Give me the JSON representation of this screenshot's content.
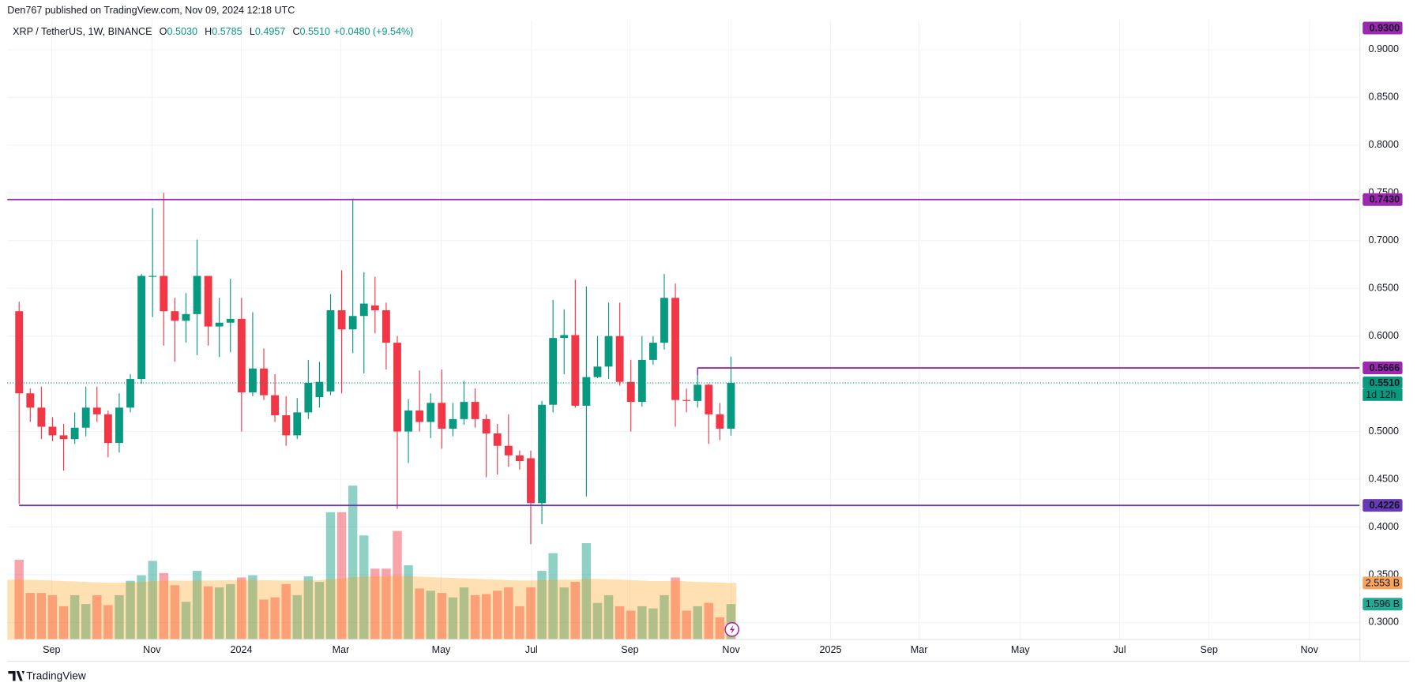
{
  "chart_data": {
    "type": "candlestick",
    "published": "Den767 published on TradingView.com, Nov 09, 2024 12:18 UTC",
    "brand": "TradingView",
    "legend": {
      "title": "XRP / TetherUS, 1W, BINANCE",
      "items": [
        {
          "key": "O",
          "value": "0.5030"
        },
        {
          "key": "H",
          "value": "0.5785"
        },
        {
          "key": "L",
          "value": "0.4957"
        },
        {
          "key": "C",
          "value": "0.5510"
        }
      ],
      "change": "+0.0480 (+9.54%)"
    },
    "up_color": "#089981",
    "down_color": "#f23645",
    "open": [
      0.626,
      0.54,
      0.525,
      0.505,
      0.496,
      0.492,
      0.504,
      0.525,
      0.518,
      0.488,
      0.525,
      0.555,
      0.662,
      0.663,
      0.626,
      0.616,
      0.623,
      0.663,
      0.61,
      0.614,
      0.618,
      0.541,
      0.566,
      0.538,
      0.517,
      0.496,
      0.52,
      0.536,
      0.542,
      0.627,
      0.607,
      0.621,
      0.632,
      0.627,
      0.593,
      0.5,
      0.522,
      0.51,
      0.53,
      0.503,
      0.513,
      0.531,
      0.513,
      0.498,
      0.485,
      0.475,
      0.472,
      0.425,
      0.528,
      0.598,
      0.601,
      0.527,
      0.557,
      0.568,
      0.6,
      0.552,
      0.531,
      0.575,
      0.593,
      0.64,
      0.533,
      0.532,
      0.549,
      0.518,
      0.503
    ],
    "high": [
      0.636,
      0.545,
      0.547,
      0.515,
      0.508,
      0.52,
      0.547,
      0.547,
      0.522,
      0.54,
      0.56,
      0.665,
      0.734,
      0.75,
      0.64,
      0.645,
      0.701,
      0.663,
      0.64,
      0.66,
      0.64,
      0.625,
      0.587,
      0.56,
      0.537,
      0.535,
      0.575,
      0.573,
      0.644,
      0.669,
      0.744,
      0.667,
      0.662,
      0.635,
      0.6,
      0.534,
      0.564,
      0.54,
      0.565,
      0.53,
      0.553,
      0.545,
      0.518,
      0.508,
      0.518,
      0.48,
      0.48,
      0.532,
      0.638,
      0.628,
      0.659,
      0.652,
      0.6,
      0.635,
      0.635,
      0.575,
      0.6,
      0.6,
      0.665,
      0.655,
      0.545,
      0.567,
      0.55,
      0.53,
      0.5785
    ],
    "low": [
      0.424,
      0.51,
      0.492,
      0.49,
      0.459,
      0.487,
      0.495,
      0.51,
      0.473,
      0.478,
      0.52,
      0.55,
      0.62,
      0.59,
      0.573,
      0.593,
      0.58,
      0.59,
      0.578,
      0.583,
      0.5,
      0.537,
      0.533,
      0.51,
      0.485,
      0.492,
      0.513,
      0.525,
      0.538,
      0.54,
      0.582,
      0.561,
      0.603,
      0.565,
      0.419,
      0.467,
      0.5,
      0.493,
      0.482,
      0.495,
      0.507,
      0.504,
      0.452,
      0.455,
      0.463,
      0.46,
      0.382,
      0.403,
      0.52,
      0.56,
      0.525,
      0.432,
      0.556,
      0.555,
      0.548,
      0.5,
      0.526,
      0.57,
      0.586,
      0.505,
      0.52,
      0.525,
      0.487,
      0.491,
      0.4957
    ],
    "close": [
      0.54,
      0.525,
      0.505,
      0.496,
      0.492,
      0.504,
      0.525,
      0.518,
      0.488,
      0.525,
      0.555,
      0.663,
      0.663,
      0.626,
      0.616,
      0.623,
      0.663,
      0.61,
      0.614,
      0.618,
      0.541,
      0.566,
      0.538,
      0.517,
      0.496,
      0.52,
      0.551,
      0.552,
      0.627,
      0.607,
      0.621,
      0.634,
      0.627,
      0.593,
      0.5,
      0.522,
      0.51,
      0.53,
      0.503,
      0.513,
      0.531,
      0.513,
      0.498,
      0.485,
      0.475,
      0.469,
      0.425,
      0.528,
      0.598,
      0.601,
      0.527,
      0.557,
      0.568,
      0.6,
      0.552,
      0.531,
      0.575,
      0.593,
      0.64,
      0.533,
      0.532,
      0.549,
      0.518,
      0.503,
      0.551
    ],
    "volume": [
      3.6,
      2.1,
      2.1,
      2.0,
      1.5,
      2.0,
      1.6,
      2.0,
      1.55,
      2.0,
      2.65,
      2.9,
      3.55,
      3.0,
      2.45,
      1.7,
      3.1,
      2.4,
      2.35,
      2.5,
      2.8,
      2.9,
      1.8,
      1.9,
      2.5,
      2.0,
      2.85,
      2.6,
      5.75,
      5.75,
      6.95,
      4.7,
      3.2,
      3.2,
      4.9,
      3.35,
      2.3,
      2.2,
      2.1,
      1.9,
      2.35,
      2.0,
      2.05,
      2.2,
      2.35,
      1.5,
      2.35,
      3.1,
      3.9,
      2.35,
      2.6,
      4.35,
      1.65,
      2.0,
      1.5,
      1.3,
      1.5,
      1.4,
      2.0,
      2.8,
      1.3,
      1.5,
      1.65,
      1.0,
      1.596
    ],
    "volume_ma": [
      2.7,
      2.69,
      2.68,
      2.66,
      2.64,
      2.62,
      2.6,
      2.58,
      2.56,
      2.56,
      2.57,
      2.6,
      2.63,
      2.65,
      2.66,
      2.65,
      2.66,
      2.66,
      2.67,
      2.68,
      2.68,
      2.69,
      2.68,
      2.67,
      2.66,
      2.66,
      2.67,
      2.68,
      2.72,
      2.76,
      2.82,
      2.84,
      2.85,
      2.86,
      2.88,
      2.86,
      2.84,
      2.82,
      2.8,
      2.78,
      2.76,
      2.74,
      2.72,
      2.7,
      2.68,
      2.66,
      2.66,
      2.68,
      2.7,
      2.7,
      2.7,
      2.74,
      2.73,
      2.72,
      2.7,
      2.68,
      2.66,
      2.64,
      2.64,
      2.65,
      2.62,
      2.6,
      2.59,
      2.57,
      2.553
    ],
    "volume_label": "1.596 B",
    "volume_ma_label": "2.553 B",
    "volume_ma_color": "#ff9800",
    "volume_ylim": [
      0,
      28
    ],
    "xlim": [
      -1.06,
      120.55
    ],
    "xticks": [
      {
        "value": 2.92,
        "label": "Sep"
      },
      {
        "value": 11.94,
        "label": "Nov"
      },
      {
        "value": 19.98,
        "label": "2024"
      },
      {
        "value": 28.92,
        "label": "Mar"
      },
      {
        "value": 37.94,
        "label": "May"
      },
      {
        "value": 46.06,
        "label": "Jul"
      },
      {
        "value": 54.91,
        "label": "Sep"
      },
      {
        "value": 64.01,
        "label": "Nov"
      },
      {
        "value": 72.95,
        "label": "2025"
      },
      {
        "value": 80.91,
        "label": "Mar"
      },
      {
        "value": 90.01,
        "label": "May"
      },
      {
        "value": 98.94,
        "label": "Jul"
      },
      {
        "value": 106.98,
        "label": "Sep"
      },
      {
        "value": 116.0,
        "label": "Nov"
      }
    ],
    "ylim": [
      0.2822,
      0.9312
    ],
    "yticks": [
      {
        "value": 0.9,
        "label": "0.9000"
      },
      {
        "value": 0.85,
        "label": "0.8500"
      },
      {
        "value": 0.8,
        "label": "0.8000"
      },
      {
        "value": 0.75,
        "label": "0.7500"
      },
      {
        "value": 0.7,
        "label": "0.7000"
      },
      {
        "value": 0.65,
        "label": "0.6500"
      },
      {
        "value": 0.6,
        "label": "0.6000"
      },
      {
        "value": 0.55,
        "label": "0.5500"
      },
      {
        "value": 0.5,
        "label": "0.5000"
      },
      {
        "value": 0.45,
        "label": "0.4500"
      },
      {
        "value": 0.4,
        "label": "0.4000"
      },
      {
        "value": 0.35,
        "label": "0.3500"
      },
      {
        "value": 0.3,
        "label": "0.3000"
      }
    ],
    "grid": true,
    "top_label": {
      "value": 0.93,
      "label": "0.9300",
      "color": "#9c27b0"
    },
    "levels": [
      {
        "value": 0.743,
        "label": "0.7430",
        "color": "#9c27b0"
      },
      {
        "value": 0.4226,
        "label": "0.4226",
        "color": "#673ab7"
      },
      {
        "value": 0.5666,
        "label": "0.5666",
        "color": "#9c27b0"
      }
    ],
    "price_line": {
      "value": 0.551,
      "label": "0.5510",
      "countdown": "1d 12h",
      "color": "#089981"
    }
  }
}
